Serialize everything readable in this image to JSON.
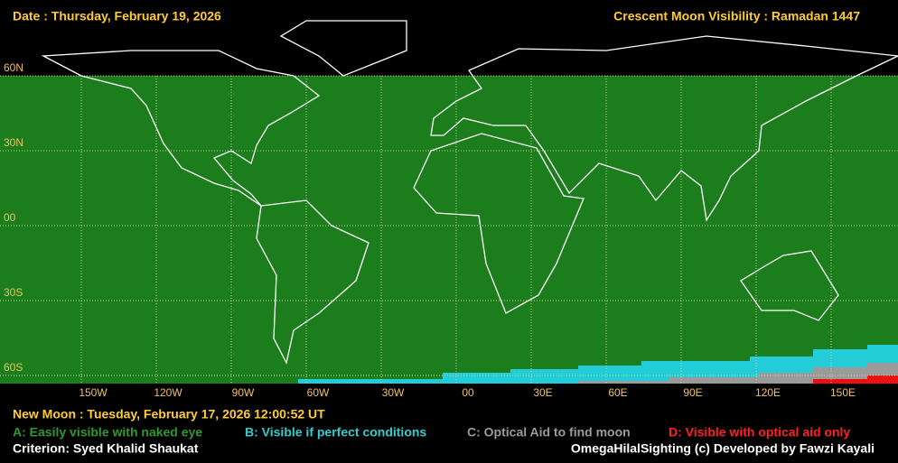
{
  "header": {
    "date": "Date : Thursday, February 19, 2026",
    "title": "Crescent Moon Visibility : Ramadan  1447"
  },
  "map": {
    "lat_labels": [
      "60N",
      "30N",
      "00",
      "30S",
      "60S"
    ],
    "lon_labels": [
      "150W",
      "120W",
      "90W",
      "60W",
      "30W",
      "00",
      "30E",
      "60E",
      "90E",
      "120E",
      "150E"
    ]
  },
  "new_moon": "New Moon : Tuesday, February 17, 2026  12:00:52  UT",
  "legend": [
    {
      "label": "A: Easily visible with naked eye",
      "color": "#2e9a2e"
    },
    {
      "label": "B: Visible if perfect conditions",
      "color": "#33cccc"
    },
    {
      "label": "C: Optical Aid to find moon",
      "color": "#9a9a9a"
    },
    {
      "label": "D: Visible with optical aid only",
      "color": "#ff2020"
    }
  ],
  "footer": {
    "criterion": "Criterion: Syed Khalid Shaukat",
    "credit": "OmegaHilalSighting  (c)  Developed by Fawzi Kayali"
  }
}
